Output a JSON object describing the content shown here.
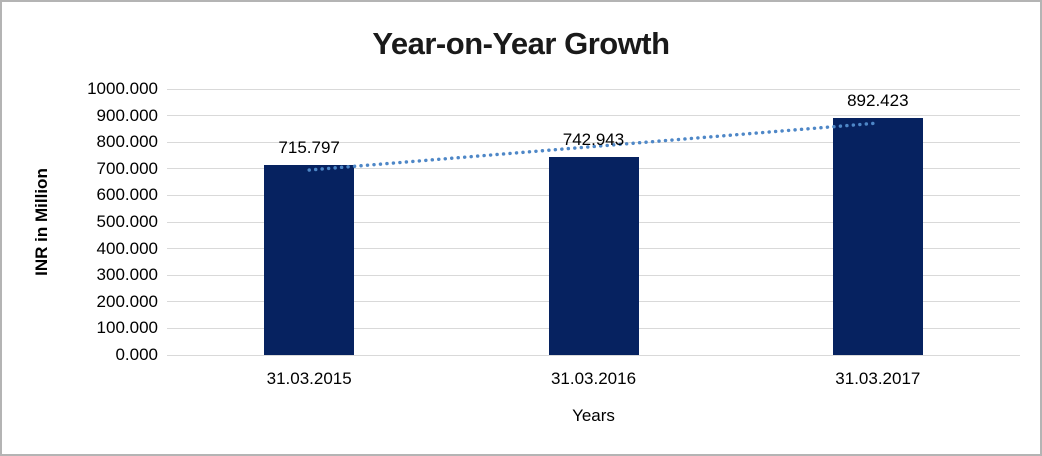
{
  "chart_data": {
    "type": "bar",
    "title": "Year-on-Year Growth",
    "xlabel": "Years",
    "ylabel": "INR in Million",
    "categories": [
      "31.03.2015",
      "31.03.2016",
      "31.03.2017"
    ],
    "values": [
      715.797,
      742.943,
      892.423
    ],
    "data_labels": [
      "715.797",
      "742.943",
      "892.423"
    ],
    "ylim": [
      0,
      1000
    ],
    "ytick_step": 100,
    "ytick_labels": [
      "0.000",
      "100.000",
      "200.000",
      "300.000",
      "400.000",
      "500.000",
      "600.000",
      "700.000",
      "800.000",
      "900.000",
      "1000.000"
    ],
    "grid": true,
    "legend": "none",
    "trendline": {
      "type": "linear",
      "style": "dotted",
      "endpoints_values": [
        695.408,
        872.034
      ],
      "color": "#4e87c7"
    },
    "colors": {
      "bar": "#062260",
      "gridline": "#d9d9d9",
      "text": "#000000",
      "border": "#b4b4b4"
    }
  }
}
